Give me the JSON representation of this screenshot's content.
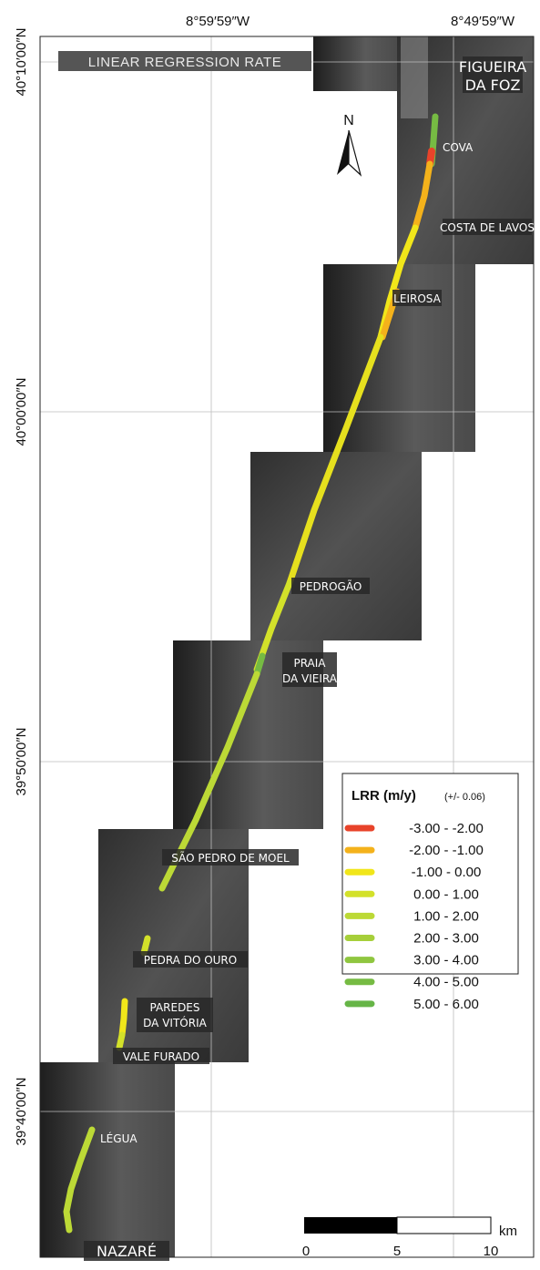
{
  "title": "LINEAR REGRESSION RATE",
  "longitude_labels": [
    "8°59′59″W",
    "8°49′59″W"
  ],
  "latitude_labels": [
    "40°10′00″N",
    "40°00′00″N",
    "39°50′00″N",
    "39°40′00″N"
  ],
  "north_arrow": {
    "label": "N",
    "icon": "north-arrow-icon"
  },
  "places": {
    "figueira_line1": "FIGUEIRA",
    "figueira_line2": "DA FOZ",
    "cova": "COVA",
    "costa_de_lavos": "COSTA DE LAVOS",
    "leirosa": "LEIROSA",
    "pedrogao": "PEDROGÃO",
    "praia_line1": "PRAIA",
    "praia_line2": "DA VIEIRA",
    "sao_pedro": "SÃO PEDRO DE MOEL",
    "pedra_do_ouro": "PEDRA DO OURO",
    "paredes_line1": "PAREDES",
    "paredes_line2": "DA VITÓRIA",
    "vale_furado": "VALE FURADO",
    "legua": "LÉGUA",
    "nazare": "NAZARÉ"
  },
  "legend": {
    "title": "LRR (m/y)",
    "subtitle": "(+/- 0.06)",
    "classes": [
      {
        "label": "-3.00 - -2.00",
        "color": "#e8432a"
      },
      {
        "label": "-2.00 - -1.00",
        "color": "#f4b21b"
      },
      {
        "label": "-1.00 - 0.00",
        "color": "#f1e61a"
      },
      {
        "label": "0.00 - 1.00",
        "color": "#d3e12a"
      },
      {
        "label": "1.00 - 2.00",
        "color": "#bcd936"
      },
      {
        "label": "2.00 - 3.00",
        "color": "#a6cf3a"
      },
      {
        "label": "3.00 - 4.00",
        "color": "#8fc63f"
      },
      {
        "label": "4.00 - 5.00",
        "color": "#76bb43"
      },
      {
        "label": "5.00 - 6.00",
        "color": "#66b547"
      }
    ]
  },
  "scale_bar": {
    "unit": "km",
    "labels": [
      "0",
      "5",
      "10"
    ]
  }
}
